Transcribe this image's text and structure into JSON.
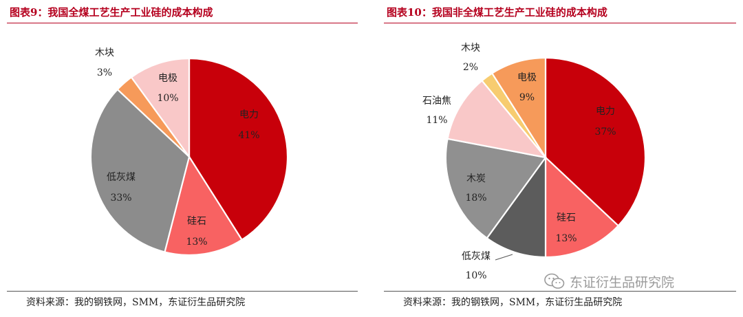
{
  "colors": {
    "title": "#b5001e",
    "dian_li": "#c8000a",
    "gui_shi": "#f86262",
    "low_ash_coal": "#8c8c8c",
    "charcoal": "#909090",
    "wood": "#f69a5a",
    "wood_right": "#f7cc70",
    "electrode": "#f9c8c8",
    "electrode_right": "#f69a5a",
    "petcoke": "#f9c8c8",
    "low_ash_coal_right": "#5c5c5c"
  },
  "chart_data": [
    {
      "type": "pie",
      "title": "图表9：我国全煤工艺生产工业硅的成本构成",
      "source": "资料来源：我的钢铁网，SMM，东证衍生品研究院",
      "slices": [
        {
          "label": "电力",
          "value": 41,
          "value_text": "41%",
          "color": "#c8000a"
        },
        {
          "label": "硅石",
          "value": 13,
          "value_text": "13%",
          "color": "#f86262"
        },
        {
          "label": "低灰煤",
          "value": 33,
          "value_text": "33%",
          "color": "#8c8c8c"
        },
        {
          "label": "木块",
          "value": 3,
          "value_text": "3%",
          "color": "#f69a5a"
        },
        {
          "label": "电极",
          "value": 10,
          "value_text": "10%",
          "color": "#f9c8c8"
        }
      ]
    },
    {
      "type": "pie",
      "title": "图表10：我国非全煤工艺生产工业硅的成本构成",
      "source": "资料来源：我的钢铁网，SMM，东证衍生品研究院",
      "slices": [
        {
          "label": "电力",
          "value": 37,
          "value_text": "37%",
          "color": "#c8000a"
        },
        {
          "label": "硅石",
          "value": 13,
          "value_text": "13%",
          "color": "#f86262"
        },
        {
          "label": "低灰煤",
          "value": 10,
          "value_text": "10%",
          "color": "#5c5c5c"
        },
        {
          "label": "木炭",
          "value": 18,
          "value_text": "18%",
          "color": "#909090"
        },
        {
          "label": "石油焦",
          "value": 11,
          "value_text": "11%",
          "color": "#f9c8c8"
        },
        {
          "label": "木块",
          "value": 2,
          "value_text": "2%",
          "color": "#f7cc70"
        },
        {
          "label": "电极",
          "value": 9,
          "value_text": "9%",
          "color": "#f69a5a"
        }
      ]
    }
  ],
  "watermark": {
    "text": "东证衍生品研究院",
    "icon": "wechat-icon"
  }
}
